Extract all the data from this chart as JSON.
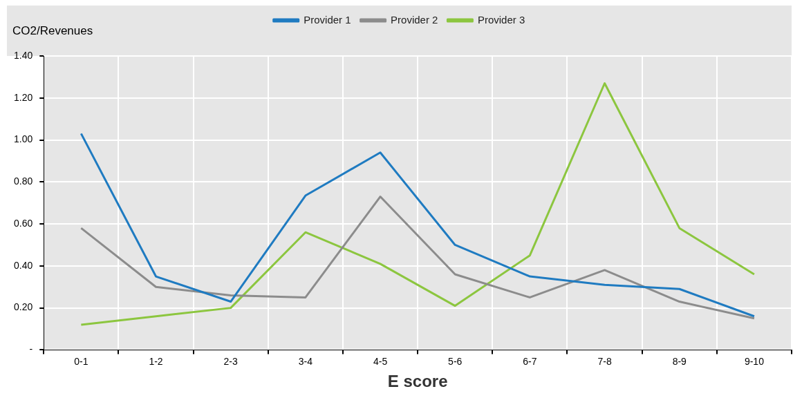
{
  "chart_data": {
    "type": "line",
    "ylabel": "CO2/Revenues",
    "xlabel": "E score",
    "categories": [
      "0-1",
      "1-2",
      "2-3",
      "3-4",
      "4-5",
      "5-6",
      "6-7",
      "7-8",
      "8-9",
      "9-10"
    ],
    "series": [
      {
        "name": "Provider 1",
        "color": "#1f7bc1",
        "values": [
          1.03,
          0.35,
          0.23,
          0.735,
          0.94,
          0.5,
          0.35,
          0.31,
          0.29,
          0.16
        ]
      },
      {
        "name": "Provider 2",
        "color": "#8c8c8c",
        "values": [
          0.58,
          0.3,
          0.26,
          0.25,
          0.73,
          0.36,
          0.25,
          0.38,
          0.23,
          0.15
        ]
      },
      {
        "name": "Provider 3",
        "color": "#8cc63f",
        "values": [
          0.12,
          0.16,
          0.2,
          0.56,
          0.41,
          0.21,
          0.45,
          1.27,
          0.58,
          0.36
        ]
      }
    ],
    "ylim": [
      0,
      1.4
    ],
    "yticks": [
      {
        "value": 0,
        "label": "-"
      },
      {
        "value": 0.2,
        "label": "0.20"
      },
      {
        "value": 0.4,
        "label": "0.40"
      },
      {
        "value": 0.6,
        "label": "0.60"
      },
      {
        "value": 0.8,
        "label": "0.80"
      },
      {
        "value": 1.0,
        "label": "1.00"
      },
      {
        "value": 1.2,
        "label": "1.20"
      },
      {
        "value": 1.4,
        "label": "1.40"
      }
    ],
    "grid": true,
    "legend": "top",
    "marker": "none",
    "line_style": "solid"
  }
}
